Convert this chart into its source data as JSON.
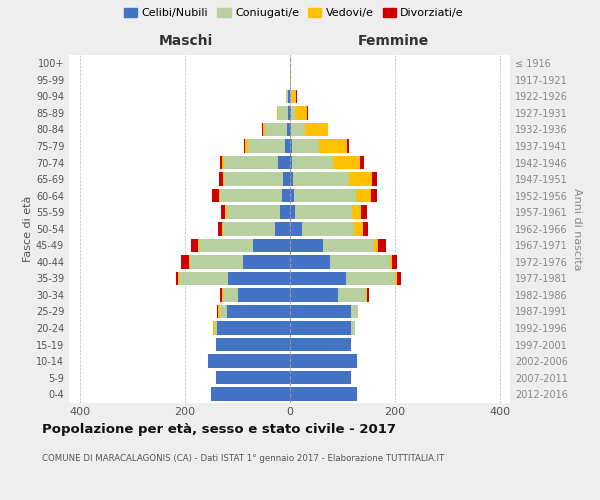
{
  "age_groups": [
    "0-4",
    "5-9",
    "10-14",
    "15-19",
    "20-24",
    "25-29",
    "30-34",
    "35-39",
    "40-44",
    "45-49",
    "50-54",
    "55-59",
    "60-64",
    "65-69",
    "70-74",
    "75-79",
    "80-84",
    "85-89",
    "90-94",
    "95-99",
    "100+"
  ],
  "birth_years": [
    "2012-2016",
    "2007-2011",
    "2002-2006",
    "1997-2001",
    "1992-1996",
    "1987-1991",
    "1982-1986",
    "1977-1981",
    "1972-1976",
    "1967-1971",
    "1962-1966",
    "1957-1961",
    "1952-1956",
    "1947-1951",
    "1942-1946",
    "1937-1941",
    "1932-1936",
    "1927-1931",
    "1922-1926",
    "1917-1921",
    "≤ 1916"
  ],
  "maschi": {
    "celibi": [
      150,
      140,
      155,
      140,
      138,
      120,
      98,
      118,
      88,
      70,
      28,
      18,
      14,
      12,
      22,
      8,
      5,
      3,
      2,
      0,
      0
    ],
    "coniugati": [
      0,
      0,
      0,
      0,
      4,
      12,
      28,
      92,
      102,
      102,
      98,
      102,
      118,
      112,
      102,
      72,
      42,
      18,
      4,
      0,
      0
    ],
    "vedovi": [
      0,
      0,
      0,
      0,
      4,
      4,
      2,
      2,
      2,
      2,
      2,
      2,
      2,
      2,
      4,
      4,
      4,
      2,
      0,
      0,
      0
    ],
    "divorziati": [
      0,
      0,
      0,
      0,
      0,
      2,
      4,
      4,
      14,
      14,
      9,
      9,
      14,
      8,
      4,
      2,
      2,
      0,
      0,
      0,
      0
    ]
  },
  "femmine": {
    "nubili": [
      128,
      118,
      128,
      118,
      118,
      118,
      93,
      108,
      78,
      63,
      24,
      11,
      9,
      6,
      4,
      4,
      2,
      2,
      0,
      0,
      0
    ],
    "coniugate": [
      0,
      0,
      0,
      0,
      6,
      12,
      52,
      93,
      113,
      98,
      98,
      108,
      118,
      108,
      78,
      52,
      28,
      8,
      4,
      0,
      0
    ],
    "vedove": [
      0,
      0,
      0,
      0,
      0,
      0,
      2,
      4,
      4,
      8,
      18,
      18,
      28,
      43,
      53,
      53,
      43,
      23,
      8,
      2,
      0
    ],
    "divorziate": [
      0,
      0,
      0,
      0,
      0,
      0,
      4,
      7,
      9,
      14,
      9,
      11,
      11,
      9,
      7,
      4,
      0,
      2,
      2,
      0,
      0
    ]
  },
  "colors": {
    "celibi": "#4472c4",
    "coniugati": "#b8cfa0",
    "vedovi": "#ffc000",
    "divorziati": "#cc0000"
  },
  "xlim": 420,
  "title": "Popolazione per età, sesso e stato civile - 2017",
  "subtitle": "COMUNE DI MARACALAGONIS (CA) - Dati ISTAT 1° gennaio 2017 - Elaborazione TUTTITALIA.IT",
  "ylabel_left": "Fasce di età",
  "ylabel_right": "Anni di nascita",
  "xlabel_left": "Maschi",
  "xlabel_right": "Femmine",
  "background_color": "#eeeeee",
  "plot_bg": "#ffffff"
}
